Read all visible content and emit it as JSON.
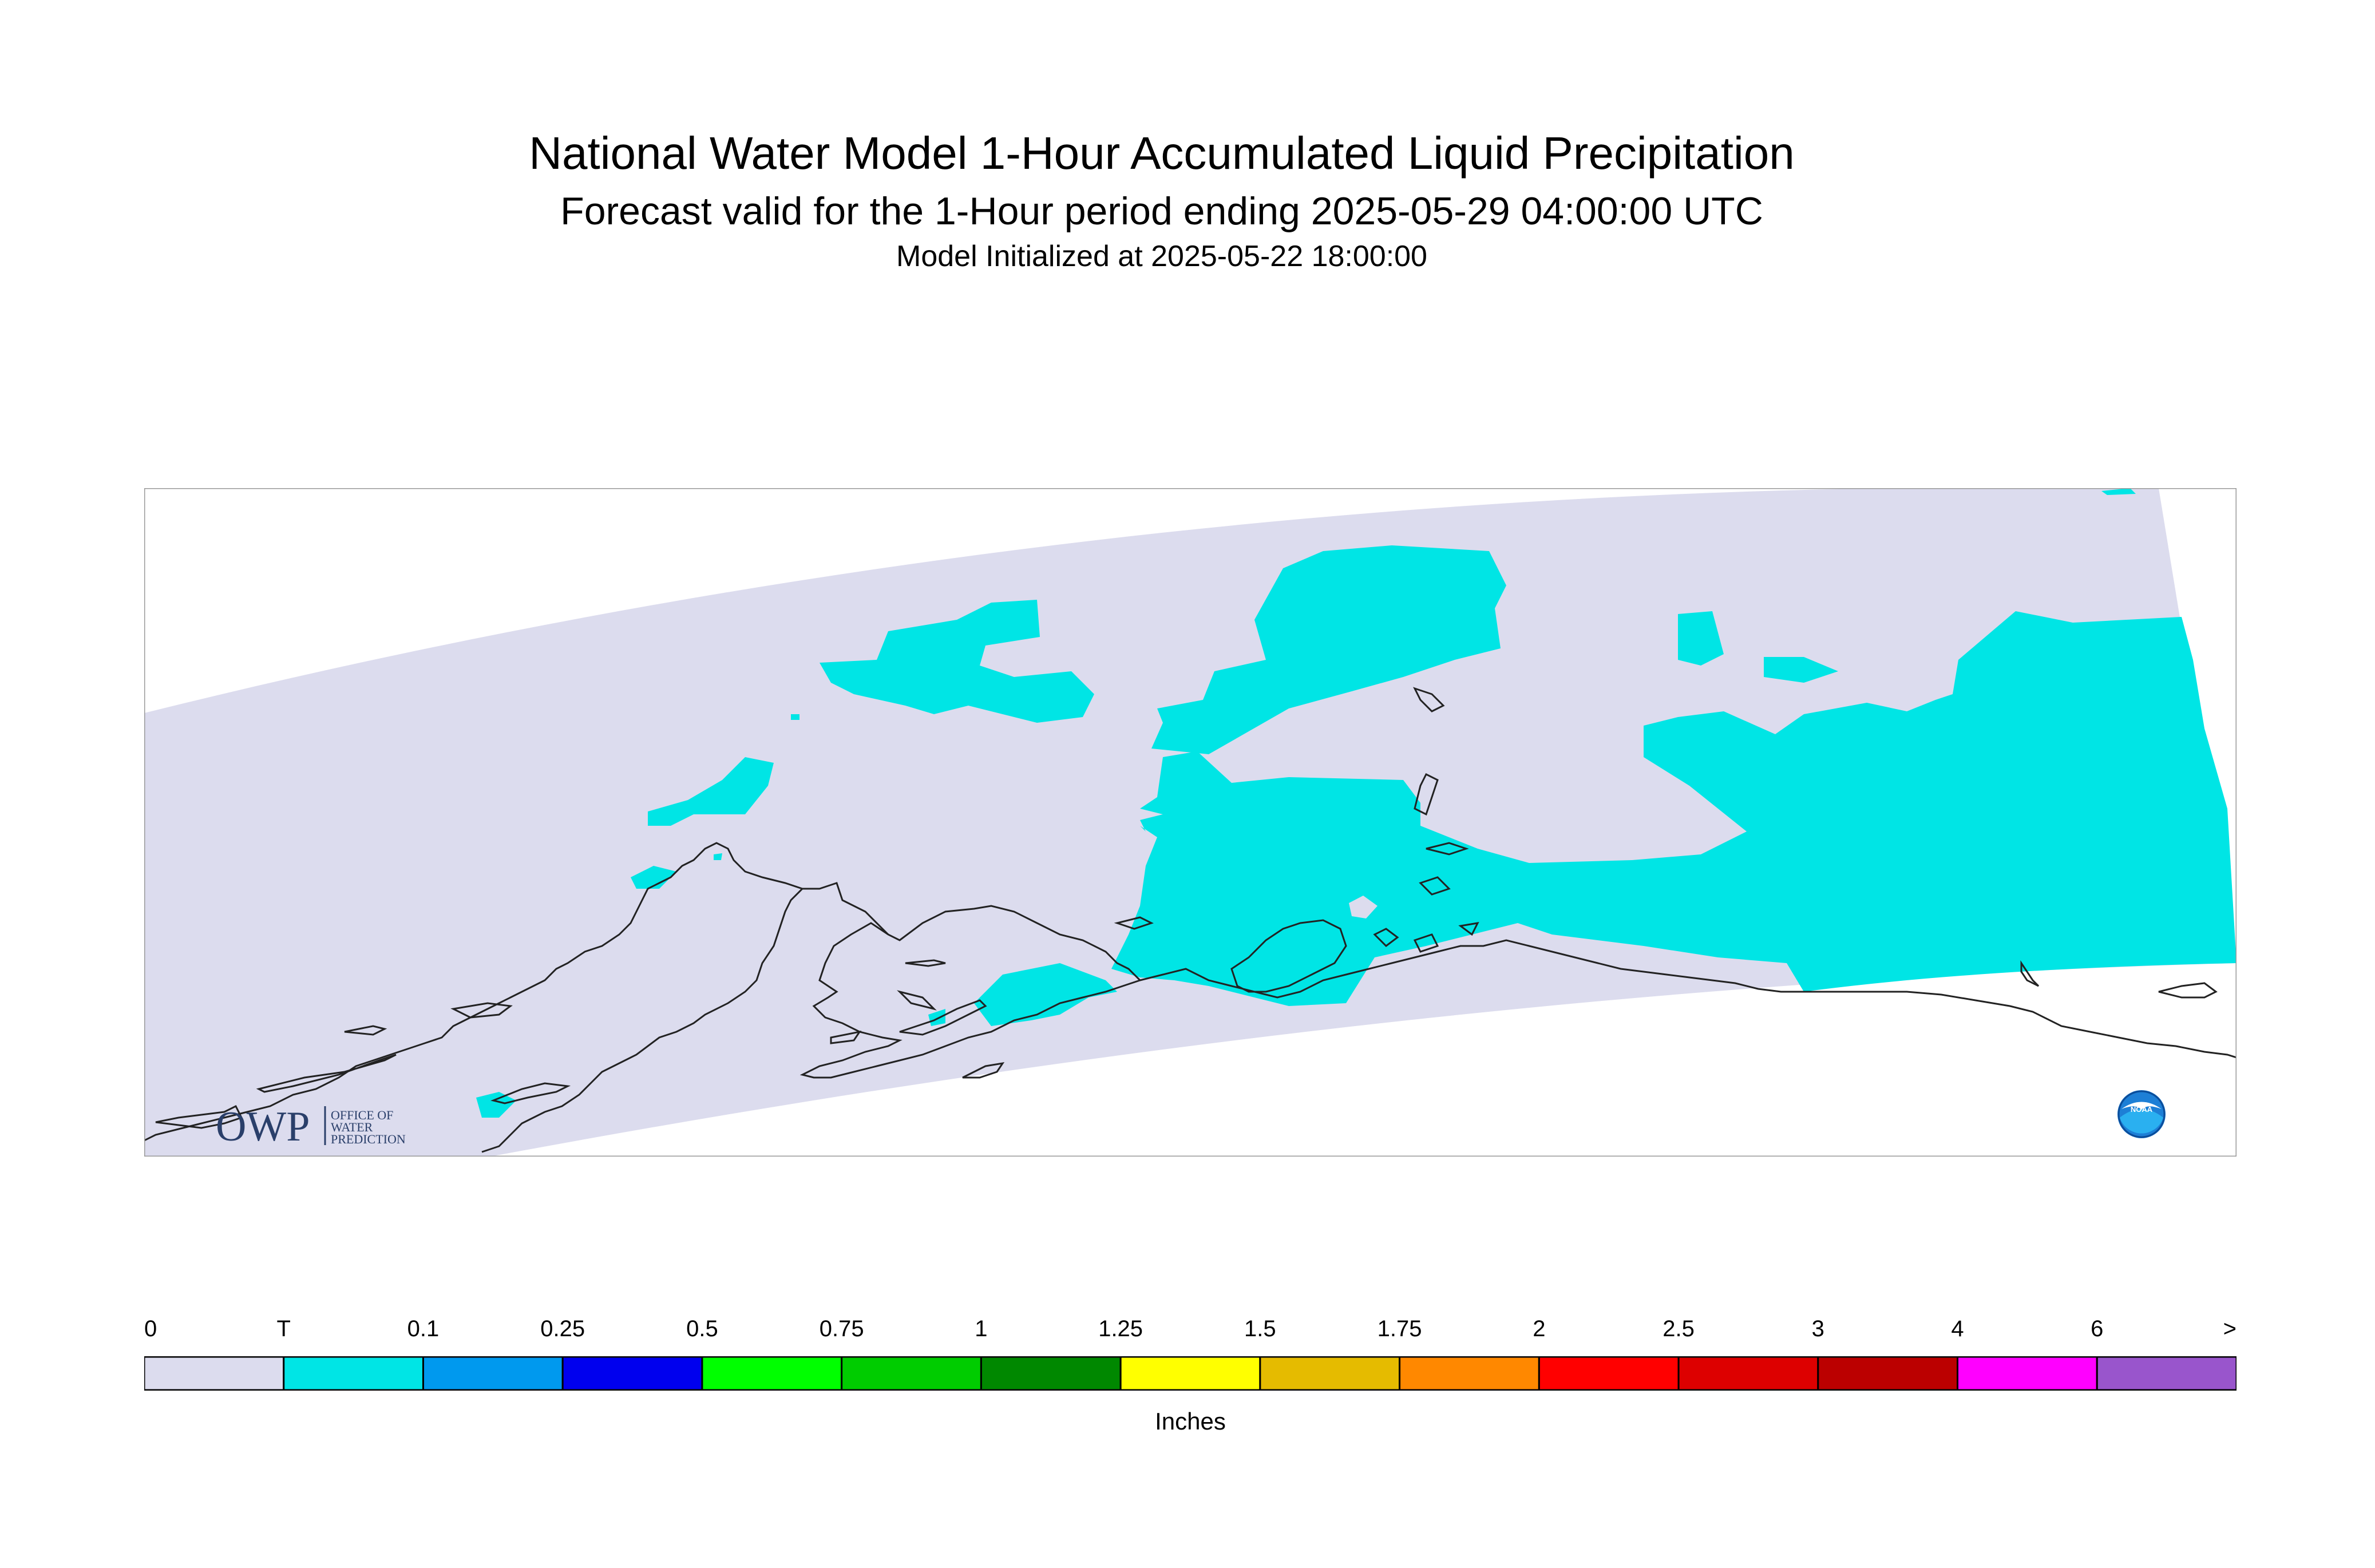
{
  "header": {
    "title": "National Water Model 1-Hour Accumulated Liquid Precipitation",
    "subtitle": "Forecast valid for the 1-Hour period ending 2025-05-29 04:00:00 UTC",
    "init": "Model Initialized at 2025-05-22 18:00:00"
  },
  "map": {
    "region": "Alaska domain",
    "colors": {
      "domain_fill": "#dcdcee",
      "precip_trace": "#00e5e5",
      "coastline": "#222222",
      "frame": "#999999"
    }
  },
  "logos": {
    "owp": {
      "mark": "OWP",
      "line1": "OFFICE OF",
      "line2": "WATER",
      "line3": "PREDICTION"
    },
    "noaa": {
      "text": "NOAA",
      "icon": "noaa-logo-icon"
    }
  },
  "legend": {
    "unit": "Inches",
    "labels": [
      "0",
      "T",
      "0.1",
      "0.25",
      "0.5",
      "0.75",
      "1",
      "1.25",
      "1.5",
      "1.75",
      "2",
      "2.5",
      "3",
      "4",
      "6",
      ">"
    ],
    "colors": [
      "#dcdcee",
      "#00e5e5",
      "#0099ee",
      "#0000ee",
      "#00ff00",
      "#00cc00",
      "#008800",
      "#ffff00",
      "#e5bb00",
      "#ff8800",
      "#ff0000",
      "#dd0000",
      "#bb0000",
      "#ff00ff",
      "#9955cc"
    ]
  }
}
